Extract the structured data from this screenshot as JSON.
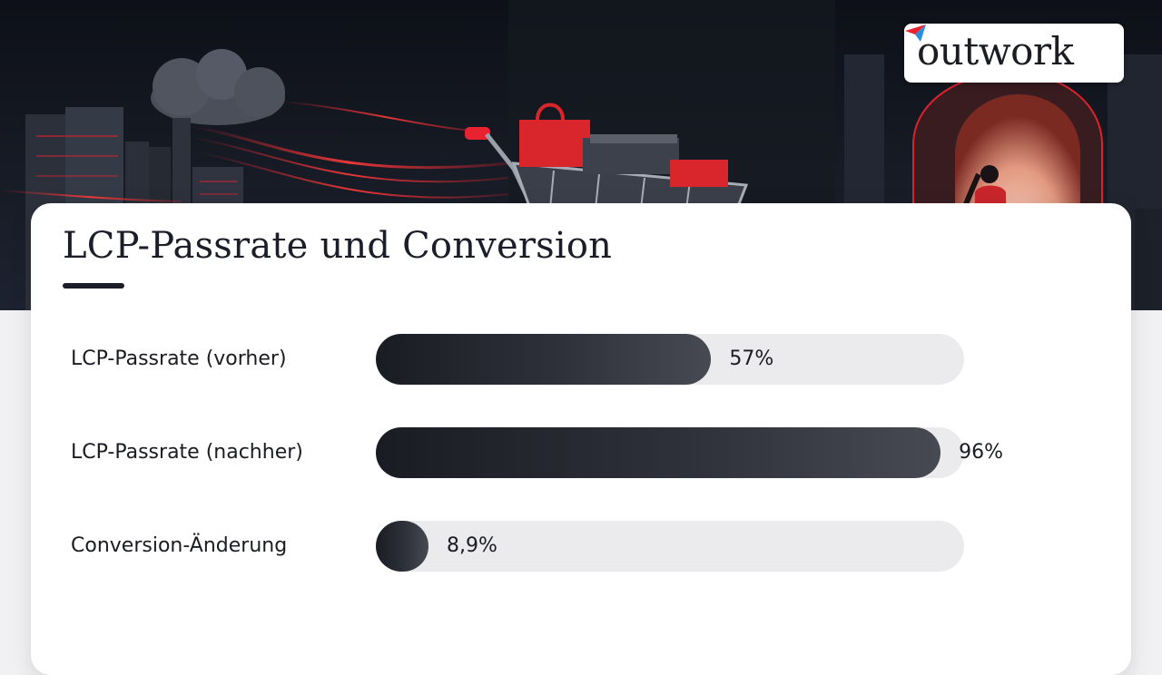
{
  "brand": {
    "logo_text": "outwork",
    "logo_mark_colors": [
      "#e8232f",
      "#2a8fd8"
    ]
  },
  "colors": {
    "accent_red": "#e8232f",
    "bar_dark": "#1a1c23",
    "bar_track": "#ebebed",
    "card_background": "#ffffff"
  },
  "hero": {
    "icons": [
      "cloud-icon",
      "server-rack-icon",
      "shopping-cart-icon",
      "shopping-bags-icon",
      "archway-icon",
      "person-silhouette-icon"
    ]
  },
  "chart_data": {
    "type": "bar",
    "orientation": "horizontal",
    "title": "LCP-Passrate und Conversion",
    "categories": [
      "LCP-Passrate (vorher)",
      "LCP-Passrate (nachher)",
      "Conversion-Änderung"
    ],
    "values": [
      57,
      96,
      8.9
    ],
    "value_labels": [
      "57%",
      "96%",
      "8,9%"
    ],
    "unit": "%",
    "xlim": [
      0,
      100
    ],
    "grid": false,
    "legend": "none"
  }
}
